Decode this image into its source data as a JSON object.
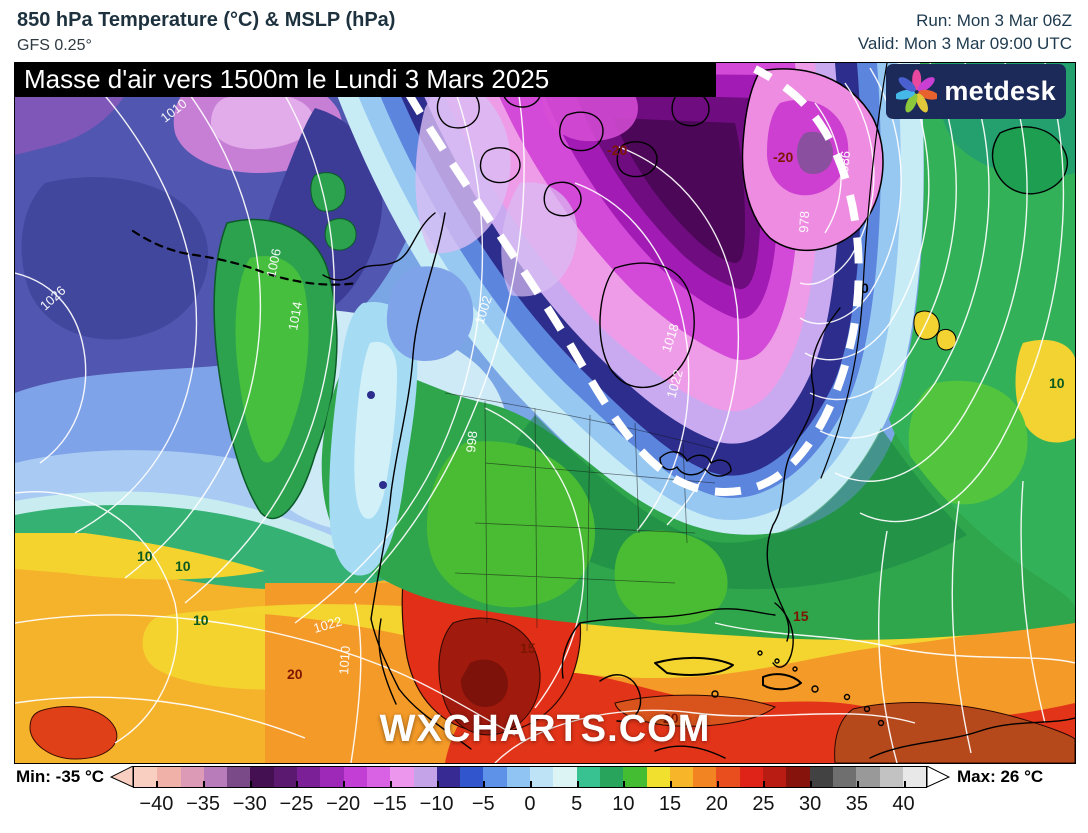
{
  "header": {
    "title": "850 hPa Temperature (°C) & MSLP (hPa)",
    "model": "GFS 0.25°",
    "run_label": "Run: Mon 3 Mar 06Z",
    "valid_label": "Valid: Mon 3 Mar 09:00 UTC"
  },
  "banner": {
    "text": "Masse d'air vers 1500m le Lundi 3 Mars 2025",
    "bg": "#000000",
    "fg": "#ffffff"
  },
  "logo": {
    "text": "metdesk",
    "bg": "#1c2a59",
    "petal_colors": [
      "#e8489e",
      "#c93fd4",
      "#e8622e",
      "#e0c83a",
      "#8cc83c",
      "#45b8e8",
      "#4a5fd0"
    ]
  },
  "map": {
    "watermark": "WXCHARTS.COM",
    "isobar_labels": [
      "1010",
      "1002",
      "998",
      "1006",
      "1014",
      "1026",
      "1022",
      "1010",
      "1018",
      "1022",
      "986",
      "978"
    ],
    "temp_labels": [
      "-20",
      "-20",
      "10",
      "10",
      "10",
      "10",
      "15",
      "15",
      "20",
      "20",
      "0"
    ],
    "airmass_outline_color": "#ffffff"
  },
  "colorbar": {
    "min_label": "Min: -35 °C",
    "max_label": "Max: 26 °C",
    "unit": "°C",
    "ticks": [
      "−40",
      "−35",
      "−30",
      "−25",
      "−20",
      "−15",
      "−10",
      "−5",
      "0",
      "5",
      "10",
      "15",
      "20",
      "25",
      "30",
      "35",
      "40"
    ],
    "segments": [
      "#f8cfc0",
      "#f0b2a8",
      "#dc9ab6",
      "#b87cba",
      "#7a4a88",
      "#451052",
      "#5c1970",
      "#7c2098",
      "#9e28b8",
      "#c23ed4",
      "#d961e4",
      "#ec96ee",
      "#c4a3e8",
      "#372a92",
      "#3055cc",
      "#5e92e8",
      "#90c4f2",
      "#bee2f6",
      "#dcf4f4",
      "#38c292",
      "#28a45c",
      "#44bd33",
      "#f2e02e",
      "#f7b62a",
      "#f28522",
      "#e94f1e",
      "#e02318",
      "#b81c12",
      "#87140c",
      "#424242",
      "#6f6f6f",
      "#999999",
      "#c2c2c2",
      "#e8e8e8"
    ]
  }
}
